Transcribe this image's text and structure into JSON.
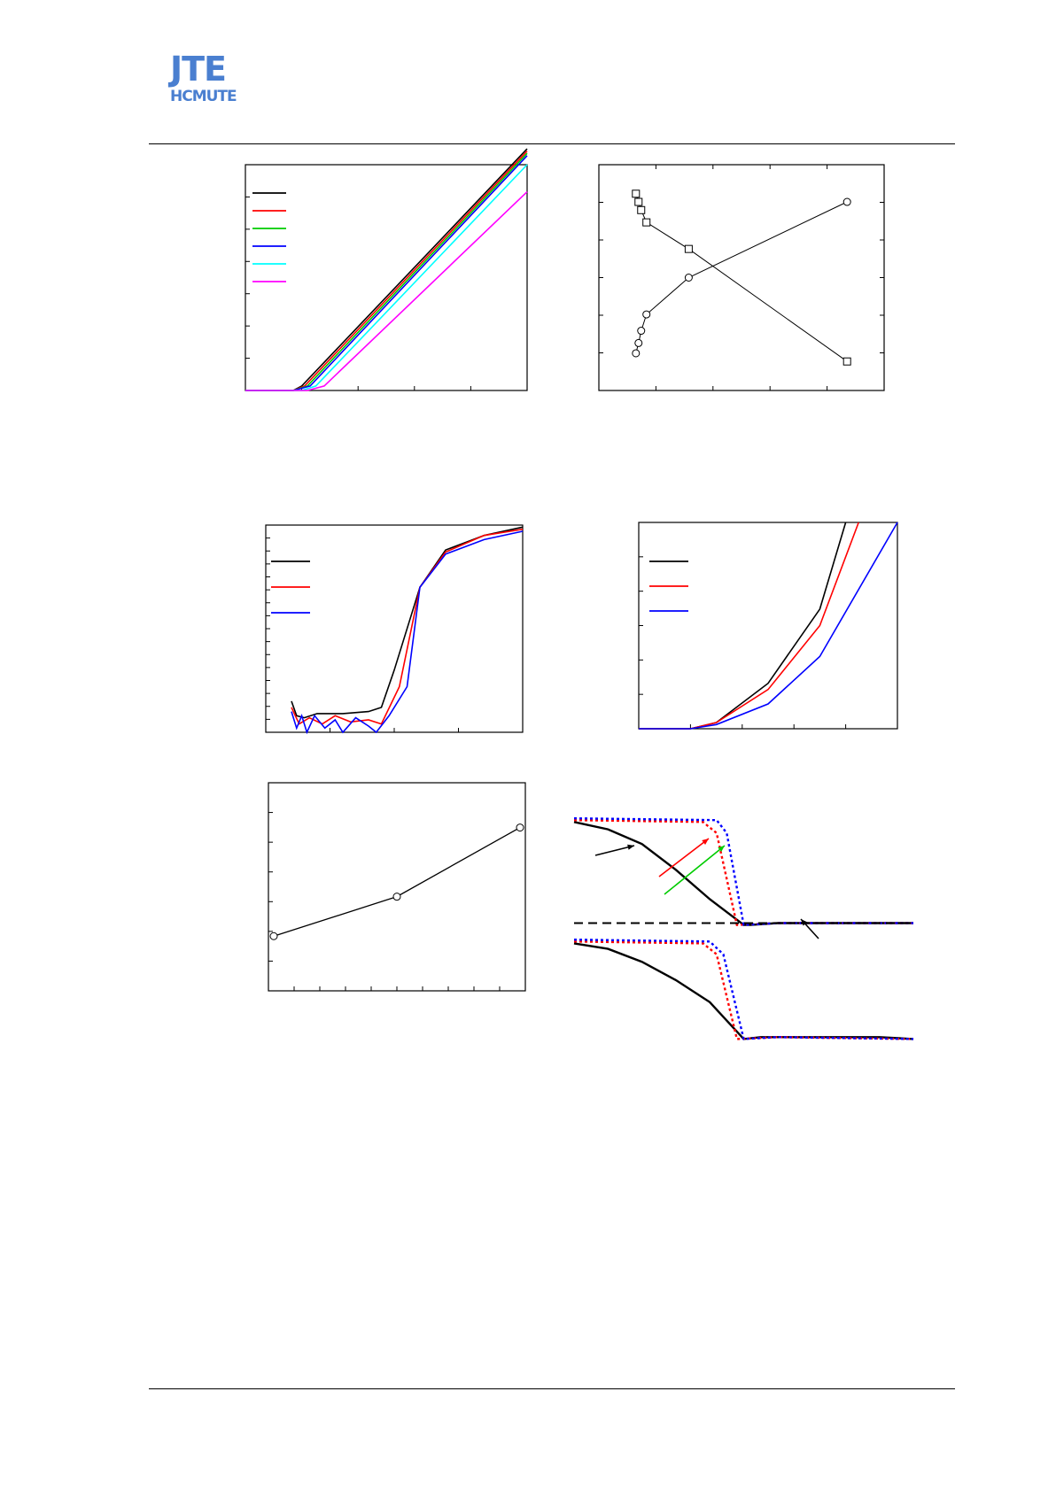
{
  "logo": {
    "line1": "JTE",
    "line2": "HCMUTE"
  },
  "charts": {
    "a": {
      "series_colors": [
        "#000000",
        "#ff0000",
        "#00cc00",
        "#0000ff",
        "#00ffff",
        "#ff00ff"
      ]
    },
    "b": {},
    "c": {
      "series_colors": [
        "#000000",
        "#ff0000",
        "#0000ff"
      ]
    },
    "d": {
      "series_colors": [
        "#000000",
        "#ff0000",
        "#0000ff"
      ]
    },
    "e": {},
    "f": {
      "series_colors": [
        "#000000",
        "#ff0000",
        "#0000ff",
        "#00cc00"
      ]
    }
  },
  "chart_data": [
    {
      "type": "line",
      "series": [
        {
          "color": "#000000",
          "points": [
            [
              0,
              0
            ],
            [
              0.17,
              0
            ],
            [
              0.2,
              0.02
            ],
            [
              1,
              1.07
            ]
          ]
        },
        {
          "color": "#ff0000",
          "points": [
            [
              0,
              0
            ],
            [
              0.17,
              0
            ],
            [
              0.21,
              0.02
            ],
            [
              1,
              1.06
            ]
          ]
        },
        {
          "color": "#00cc00",
          "points": [
            [
              0,
              0
            ],
            [
              0.17,
              0
            ],
            [
              0.22,
              0.02
            ],
            [
              1,
              1.05
            ]
          ]
        },
        {
          "color": "#0000ff",
          "points": [
            [
              0,
              0
            ],
            [
              0.17,
              0
            ],
            [
              0.23,
              0.02
            ],
            [
              1,
              1.04
            ]
          ]
        },
        {
          "color": "#00ffff",
          "points": [
            [
              0,
              0
            ],
            [
              0.2,
              0
            ],
            [
              0.25,
              0.02
            ],
            [
              1,
              1.0
            ]
          ]
        },
        {
          "color": "#ff00ff",
          "points": [
            [
              0,
              0
            ],
            [
              0.22,
              0
            ],
            [
              0.28,
              0.02
            ],
            [
              1,
              0.88
            ]
          ]
        }
      ],
      "xlim": [
        0,
        1
      ],
      "ylim": [
        0,
        1
      ]
    },
    {
      "type": "line",
      "series": [
        {
          "marker": "circle",
          "points": [
            [
              0,
              0.13
            ],
            [
              0.01,
              0.18
            ],
            [
              0.02,
              0.24
            ],
            [
              0.04,
              0.32
            ],
            [
              0.2,
              0.5
            ],
            [
              0.8,
              0.87
            ]
          ]
        },
        {
          "marker": "square",
          "points": [
            [
              0,
              0.91
            ],
            [
              0.01,
              0.87
            ],
            [
              0.02,
              0.83
            ],
            [
              0.04,
              0.77
            ],
            [
              0.2,
              0.64
            ],
            [
              0.8,
              0.09
            ]
          ]
        }
      ],
      "xlim": [
        -0.1,
        0.9
      ],
      "ylim": [
        0,
        1
      ]
    },
    {
      "type": "line",
      "series": [
        {
          "color": "#000000",
          "points": [
            [
              0.1,
              0.15
            ],
            [
              0.12,
              0.08
            ],
            [
              0.15,
              0.07
            ],
            [
              0.2,
              0.09
            ],
            [
              0.3,
              0.09
            ],
            [
              0.4,
              0.1
            ],
            [
              0.45,
              0.12
            ],
            [
              0.5,
              0.3
            ],
            [
              0.6,
              0.7
            ],
            [
              0.7,
              0.88
            ],
            [
              0.85,
              0.95
            ],
            [
              1,
              0.99
            ]
          ]
        },
        {
          "color": "#ff0000",
          "points": [
            [
              0.1,
              0.12
            ],
            [
              0.13,
              0.04
            ],
            [
              0.17,
              0.07
            ],
            [
              0.22,
              0.04
            ],
            [
              0.27,
              0.08
            ],
            [
              0.33,
              0.05
            ],
            [
              0.4,
              0.06
            ],
            [
              0.45,
              0.04
            ],
            [
              0.52,
              0.22
            ],
            [
              0.6,
              0.7
            ],
            [
              0.7,
              0.87
            ],
            [
              0.85,
              0.95
            ],
            [
              1,
              0.98
            ]
          ]
        },
        {
          "color": "#0000ff",
          "points": [
            [
              0.1,
              0.1
            ],
            [
              0.12,
              0.02
            ],
            [
              0.14,
              0.08
            ],
            [
              0.16,
              0.0
            ],
            [
              0.19,
              0.08
            ],
            [
              0.23,
              0.02
            ],
            [
              0.27,
              0.06
            ],
            [
              0.3,
              0.0
            ],
            [
              0.35,
              0.07
            ],
            [
              0.4,
              0.03
            ],
            [
              0.43,
              0.0
            ],
            [
              0.48,
              0.08
            ],
            [
              0.55,
              0.22
            ],
            [
              0.6,
              0.7
            ],
            [
              0.7,
              0.86
            ],
            [
              0.85,
              0.93
            ],
            [
              1,
              0.97
            ]
          ]
        }
      ],
      "xlim": [
        0,
        1
      ],
      "ylim": [
        0,
        1
      ]
    },
    {
      "type": "line",
      "series": [
        {
          "color": "#000000",
          "points": [
            [
              0,
              0
            ],
            [
              0.2,
              0
            ],
            [
              0.3,
              0.03
            ],
            [
              0.5,
              0.22
            ],
            [
              0.7,
              0.58
            ],
            [
              0.8,
              1.0
            ]
          ]
        },
        {
          "color": "#ff0000",
          "points": [
            [
              0,
              0
            ],
            [
              0.2,
              0
            ],
            [
              0.3,
              0.03
            ],
            [
              0.5,
              0.19
            ],
            [
              0.7,
              0.5
            ],
            [
              0.85,
              1.0
            ]
          ]
        },
        {
          "color": "#0000ff",
          "points": [
            [
              0,
              0
            ],
            [
              0.2,
              0
            ],
            [
              0.3,
              0.02
            ],
            [
              0.5,
              0.12
            ],
            [
              0.7,
              0.35
            ],
            [
              1.0,
              1.0
            ]
          ]
        }
      ],
      "xlim": [
        0,
        1
      ],
      "ylim": [
        0,
        1
      ]
    },
    {
      "type": "line",
      "series": [
        {
          "marker": "circle",
          "points": [
            [
              0,
              0.25
            ],
            [
              0.5,
              0.45
            ],
            [
              1,
              0.8
            ]
          ]
        }
      ],
      "xlim": [
        0,
        1
      ],
      "ylim": [
        0,
        1
      ]
    },
    {
      "type": "line",
      "series": [
        {
          "color": "#000000",
          "style": "solid",
          "points": [
            [
              0,
              0.96
            ],
            [
              0.1,
              0.92
            ],
            [
              0.2,
              0.84
            ],
            [
              0.3,
              0.7
            ],
            [
              0.4,
              0.54
            ],
            [
              0.5,
              0.4
            ],
            [
              0.52,
              0.4
            ],
            [
              0.6,
              0.41
            ],
            [
              0.9,
              0.41
            ],
            [
              1,
              0.41
            ]
          ]
        },
        {
          "color": "#ff0000",
          "style": "dotted",
          "points": [
            [
              0,
              0.97
            ],
            [
              0.38,
              0.96
            ],
            [
              0.42,
              0.9
            ],
            [
              0.48,
              0.4
            ],
            [
              0.6,
              0.41
            ],
            [
              1,
              0.41
            ]
          ]
        },
        {
          "color": "#0000ff",
          "style": "dotted",
          "points": [
            [
              0,
              0.98
            ],
            [
              0.42,
              0.97
            ],
            [
              0.45,
              0.9
            ],
            [
              0.5,
              0.4
            ],
            [
              0.6,
              0.41
            ],
            [
              1,
              0.41
            ]
          ]
        },
        {
          "color": "#000000",
          "style": "dashed",
          "points": [
            [
              0,
              0.41
            ],
            [
              1,
              0.41
            ]
          ]
        },
        {
          "color": "#000000",
          "style": "solid",
          "points": [
            [
              0,
              0.3
            ],
            [
              0.1,
              0.27
            ],
            [
              0.2,
              0.2
            ],
            [
              0.3,
              0.1
            ],
            [
              0.4,
              -0.02
            ],
            [
              0.45,
              -0.12
            ],
            [
              0.5,
              -0.22
            ],
            [
              0.55,
              -0.21
            ],
            [
              0.9,
              -0.21
            ],
            [
              1,
              -0.22
            ]
          ]
        },
        {
          "color": "#ff0000",
          "style": "dotted",
          "points": [
            [
              0,
              0.31
            ],
            [
              0.38,
              0.3
            ],
            [
              0.42,
              0.24
            ],
            [
              0.48,
              -0.22
            ],
            [
              0.6,
              -0.21
            ],
            [
              1,
              -0.22
            ]
          ]
        },
        {
          "color": "#0000ff",
          "style": "dotted",
          "points": [
            [
              0,
              0.32
            ],
            [
              0.4,
              0.31
            ],
            [
              0.44,
              0.24
            ],
            [
              0.5,
              -0.22
            ],
            [
              0.6,
              -0.21
            ],
            [
              1,
              -0.22
            ]
          ]
        }
      ],
      "xlim": [
        0,
        1
      ],
      "ylim": [
        -0.3,
        1
      ]
    }
  ]
}
